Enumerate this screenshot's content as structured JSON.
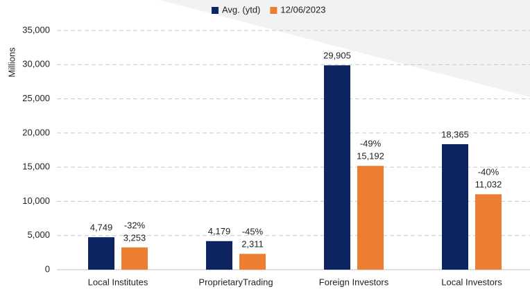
{
  "chart_data": {
    "type": "bar",
    "ylabel": "Millions",
    "categories": [
      "Local Institutes",
      "ProprietaryTrading",
      "Foreign Investors",
      "Local Investors"
    ],
    "series": [
      {
        "name": "Avg. (ytd)",
        "color": "#0d2463",
        "values": [
          4749,
          4179,
          29905,
          18365
        ],
        "value_labels": [
          "4,749",
          "4,179",
          "29,905",
          "18,365"
        ]
      },
      {
        "name": "12/06/2023",
        "color": "#ed7d31",
        "values": [
          3253,
          2311,
          15192,
          11032
        ],
        "value_labels": [
          "3,253",
          "2,311",
          "15,192",
          "11,032"
        ],
        "change_labels": [
          "-32%",
          "-45%",
          "-49%",
          "-40%"
        ]
      }
    ],
    "ylim": [
      0,
      35000
    ],
    "yticks": [
      0,
      {
        "value": 5000,
        "label": "5,000"
      },
      {
        "value": 10000,
        "label": "10,000"
      },
      {
        "value": 15000,
        "label": "15,000"
      },
      {
        "value": 20000,
        "label": "20,000"
      },
      {
        "value": 25000,
        "label": "25,000"
      },
      {
        "value": 30000,
        "label": "30,000"
      },
      {
        "value": 35000,
        "label": "35,000"
      }
    ],
    "grid": true,
    "legend": "top"
  }
}
